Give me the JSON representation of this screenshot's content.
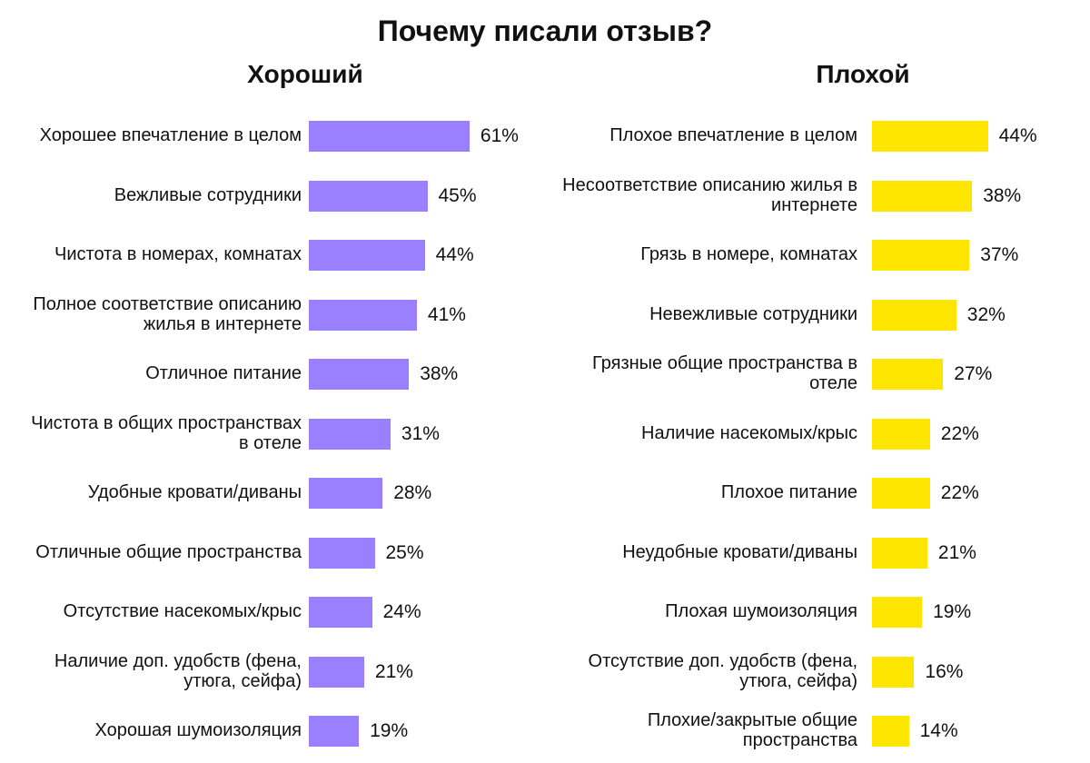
{
  "chart_data": [
    {
      "type": "bar",
      "orientation": "horizontal",
      "title": "Почему писали отзыв?",
      "subtitle": "Хороший",
      "color": "#9a80ff",
      "categories": [
        "Хорошее впечатление в целом",
        "Вежливые сотрудники",
        "Чистота в номерах, комнатах",
        "Полное соответствие описанию жилья в интернете",
        "Отличное питание",
        "Чистота в общих пространствах в отеле",
        "Удобные кровати/диваны",
        "Отличные общие пространства",
        "Отсутствие насекомых/крыс",
        "Наличие доп. удобств (фена, утюга, сейфа)",
        "Хорошая шумоизоляция"
      ],
      "values": [
        61,
        45,
        44,
        41,
        38,
        31,
        28,
        25,
        24,
        21,
        19
      ],
      "value_labels": [
        "61%",
        "45%",
        "44%",
        "41%",
        "38%",
        "31%",
        "28%",
        "25%",
        "24%",
        "21%",
        "19%"
      ],
      "unit": "%",
      "xlim": [
        0,
        100
      ]
    },
    {
      "type": "bar",
      "orientation": "horizontal",
      "subtitle": "Плохой",
      "color": "#ffe600",
      "categories": [
        "Плохое впечатление в целом",
        "Несоответствие описанию жилья в интернете",
        "Грязь в номере, комнатах",
        "Невежливые сотрудники",
        "Грязные общие пространства в отеле",
        "Наличие насекомых/крыс",
        "Плохое питание",
        "Неудобные кровати/диваны",
        "Плохая шумоизоляция",
        "Отсутствие доп. удобств (фена, утюга, сейфа)",
        "Плохие/закрытые общие пространства"
      ],
      "values": [
        44,
        38,
        37,
        32,
        27,
        22,
        22,
        21,
        19,
        16,
        14
      ],
      "value_labels": [
        "44%",
        "38%",
        "37%",
        "32%",
        "27%",
        "22%",
        "22%",
        "21%",
        "19%",
        "16%",
        "14%"
      ],
      "unit": "%",
      "xlim": [
        0,
        100
      ]
    }
  ]
}
